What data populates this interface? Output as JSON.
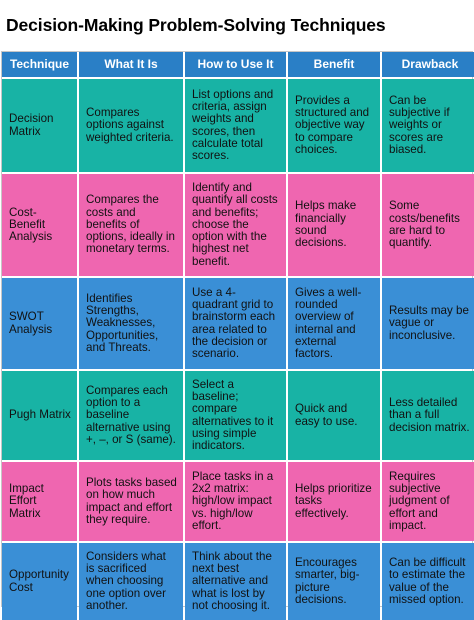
{
  "title": "Decision-Making Problem-Solving Techniques",
  "headers": [
    "Technique",
    "What It Is",
    "How to Use It",
    "Benefit",
    "Drawback"
  ],
  "row_colors": [
    "#18b3a5",
    "#ef66b0",
    "#3a8fd6",
    "#18b3a5",
    "#ef66b0",
    "#3a8fd6"
  ],
  "rows": [
    {
      "technique": "Decision Matrix",
      "what": "Compares options against weighted criteria.",
      "how": "List options and criteria, assign weights and scores, then calculate total scores.",
      "benefit": "Provides a structured and objective way to compare choices.",
      "drawback": "Can be subjective if weights or scores are biased."
    },
    {
      "technique": "Cost-Benefit Analysis",
      "what": "Compares the costs and benefits of options, ideally in monetary terms.",
      "how": "Identify and quantify all costs and benefits; choose the option with the highest net benefit.",
      "benefit": "Helps make financially sound decisions.",
      "drawback": "Some costs/benefits are hard to quantify."
    },
    {
      "technique": "SWOT Analysis",
      "what": "Identifies Strengths, Weaknesses, Opportunities, and Threats.",
      "how": "Use a 4-quadrant grid to brainstorm each area related to the decision or scenario.",
      "benefit": "Gives a well-rounded overview of internal and external factors.",
      "drawback": "Results may be vague or inconclusive."
    },
    {
      "technique": "Pugh Matrix",
      "what": "Compares each option to a baseline alternative using +, –, or S (same).",
      "how": "Select a baseline; compare alternatives to it using simple indicators.",
      "benefit": "Quick and easy to use.",
      "drawback": "Less detailed than a full decision matrix."
    },
    {
      "technique": "Impact Effort Matrix",
      "what": "Plots tasks based on how much impact and effort they require.",
      "how": "Place tasks in a 2x2 matrix: high/low impact vs. high/low effort.",
      "benefit": "Helps prioritize tasks effectively.",
      "drawback": "Requires subjective judgment of effort and impact."
    },
    {
      "technique": "Opportunity Cost",
      "what": "Considers what is sacrificed when choosing one option over another.",
      "how": "Think about the next best alternative and what is lost by not choosing it.",
      "benefit": "Encourages smarter, big-picture decisions.",
      "drawback": "Can be difficult to estimate the value of the missed option."
    }
  ]
}
